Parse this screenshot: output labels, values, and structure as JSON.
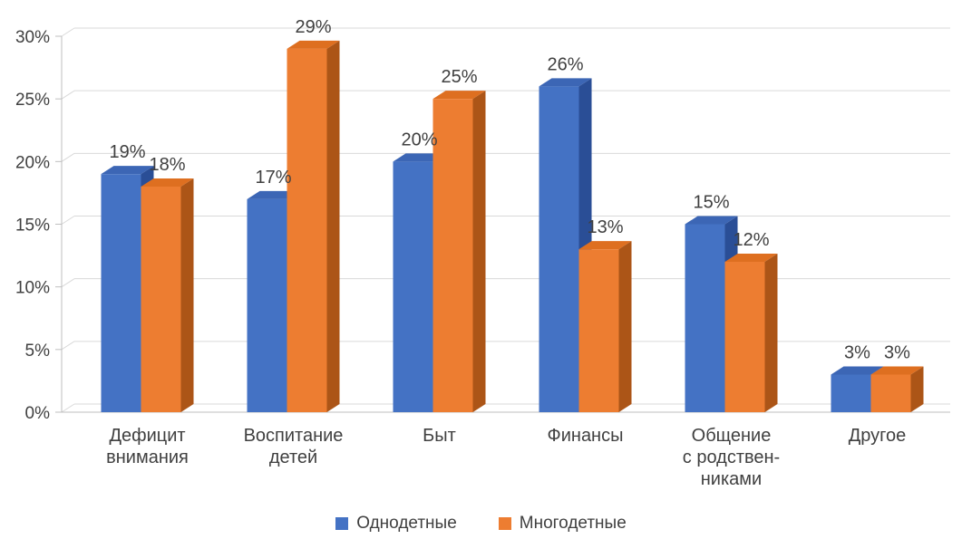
{
  "chart_data": {
    "type": "bar",
    "style": "3d-clustered-column",
    "title": "",
    "xlabel": "",
    "ylabel": "",
    "ylim": [
      0,
      30
    ],
    "ytick_step": 5,
    "ytick_labels": [
      "0%",
      "5%",
      "10%",
      "15%",
      "20%",
      "25%",
      "30%"
    ],
    "grid": true,
    "legend_position": "bottom",
    "value_suffix": "%",
    "categories": [
      [
        "Дефицит",
        "внимания"
      ],
      [
        "Воспитание",
        "детей"
      ],
      [
        "Быт"
      ],
      [
        "Финансы"
      ],
      [
        "Общение",
        "с родствен-",
        "никами"
      ],
      [
        "Другое"
      ]
    ],
    "series": [
      {
        "name": "Однодетные",
        "color": "#4472C4",
        "color_top": "#3C66B5",
        "color_side": "#2A4E96",
        "values": [
          19,
          17,
          20,
          26,
          15,
          3
        ],
        "labels": [
          "19%",
          "17%",
          "20%",
          "26%",
          "15%",
          "3%"
        ]
      },
      {
        "name": "Многодетные",
        "color": "#ED7D31",
        "color_top": "#DE6F20",
        "color_side": "#AC5517",
        "values": [
          18,
          29,
          25,
          13,
          12,
          3
        ],
        "labels": [
          "18%",
          "29%",
          "25%",
          "13%",
          "12%",
          "3%"
        ]
      }
    ],
    "colors": {
      "gridline": "#D9D9D9",
      "axis": "#BFBFBF",
      "text": "#404040",
      "background": "#FFFFFF"
    }
  }
}
